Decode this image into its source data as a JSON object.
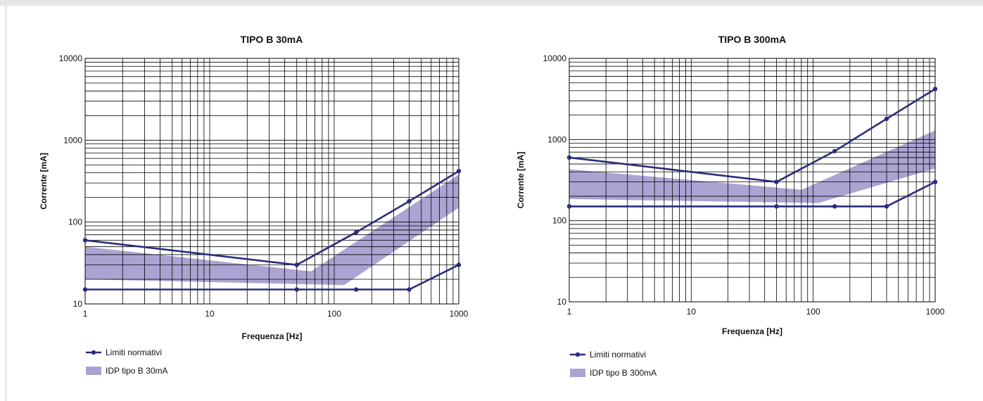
{
  "colors": {
    "line": "#2a2d7c",
    "band": "#a9a4d2",
    "grid": "#000000"
  },
  "chart_data": [
    {
      "type": "line",
      "title": "TIPO B 30mA",
      "xlabel": "Frequenza [Hz]",
      "ylabel": "Corrente [mA]",
      "xscale": "log",
      "yscale": "log",
      "xlim": [
        1,
        1000
      ],
      "ylim": [
        10,
        10000
      ],
      "xticks": [
        "1",
        "10",
        "100",
        "1000"
      ],
      "yticks": [
        "10",
        "100",
        "1000",
        "10000"
      ],
      "grid": true,
      "legend_position": "bottom-left",
      "series": [
        {
          "name": "Limiti normativi",
          "kind": "line-markers",
          "segments": [
            {
              "x": [
                1,
                50,
                150,
                400,
                1000
              ],
              "y": [
                60,
                30,
                75,
                180,
                420
              ]
            },
            {
              "x": [
                1,
                50,
                150,
                400,
                1000
              ],
              "y": [
                15,
                15,
                15,
                15,
                30
              ]
            }
          ]
        },
        {
          "name": "IDP tipo B 30mA",
          "kind": "band",
          "x_upper": [
            1,
            65,
            1000
          ],
          "upper": [
            50,
            25,
            380
          ],
          "x_lower": [
            1,
            120,
            1000
          ],
          "lower": [
            20,
            17,
            150
          ]
        }
      ]
    },
    {
      "type": "line",
      "title": "TIPO B 300mA",
      "xlabel": "Frequenza [Hz]",
      "ylabel": "Corrente [mA]",
      "xscale": "log",
      "yscale": "log",
      "xlim": [
        1,
        1000
      ],
      "ylim": [
        10,
        10000
      ],
      "xticks": [
        "1",
        "10",
        "100",
        "1000"
      ],
      "yticks": [
        "10",
        "100",
        "1000",
        "10000"
      ],
      "grid": true,
      "legend_position": "bottom-left",
      "series": [
        {
          "name": "Limiti normativi",
          "kind": "line-markers",
          "segments": [
            {
              "x": [
                1,
                50,
                150,
                400,
                1000
              ],
              "y": [
                600,
                300,
                720,
                1800,
                4200
              ]
            },
            {
              "x": [
                1,
                50,
                150,
                400,
                1000
              ],
              "y": [
                150,
                150,
                150,
                150,
                300
              ]
            }
          ]
        },
        {
          "name": "IDP tipo B 300mA",
          "kind": "band",
          "x_upper": [
            1,
            80,
            1000
          ],
          "upper": [
            430,
            240,
            1300
          ],
          "x_lower": [
            1,
            110,
            1000
          ],
          "lower": [
            185,
            165,
            440
          ]
        }
      ]
    }
  ]
}
